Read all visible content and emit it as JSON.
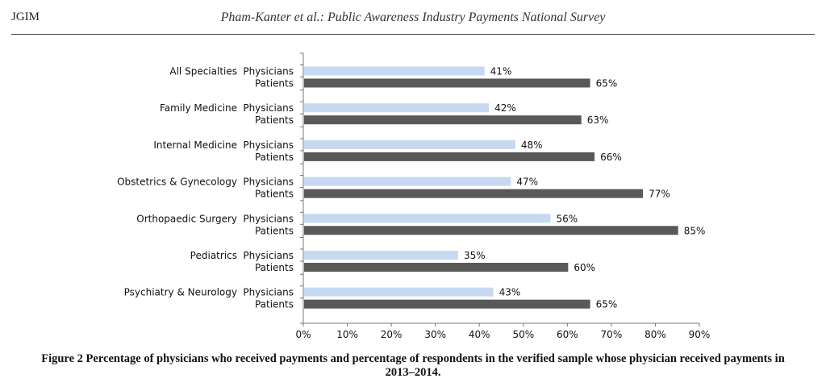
{
  "header": {
    "journal": "JGIM",
    "running_title": "Pham-Kanter et al.: Public Awareness Industry Payments National Survey"
  },
  "caption": "Figure 2 Percentage of physicians who received payments and percentage of respondents in the verified sample whose physician received payments in 2013–2014.",
  "chart_data": {
    "type": "bar",
    "orientation": "horizontal",
    "categories": [
      "All Specialties",
      "Family Medicine",
      "Internal Medicine",
      "Obstetrics & Gynecology",
      "Orthopaedic Surgery",
      "Pediatrics",
      "Psychiatry & Neurology"
    ],
    "series": [
      {
        "name": "Physicians",
        "values": [
          41,
          42,
          48,
          47,
          56,
          35,
          43
        ],
        "color": "#c6d9f1"
      },
      {
        "name": "Patients",
        "values": [
          65,
          63,
          66,
          77,
          85,
          60,
          65
        ],
        "color": "#595959"
      }
    ],
    "value_labels": {
      "Physicians": [
        "41%",
        "42%",
        "48%",
        "47%",
        "56%",
        "35%",
        "43%"
      ],
      "Patients": [
        "65%",
        "63%",
        "66%",
        "77%",
        "85%",
        "60%",
        "65%"
      ]
    },
    "xlim": [
      0,
      90
    ],
    "x_ticks": [
      "0%",
      "10%",
      "20%",
      "30%",
      "40%",
      "50%",
      "60%",
      "70%",
      "80%",
      "90%"
    ],
    "grid": false,
    "legend": "none"
  }
}
